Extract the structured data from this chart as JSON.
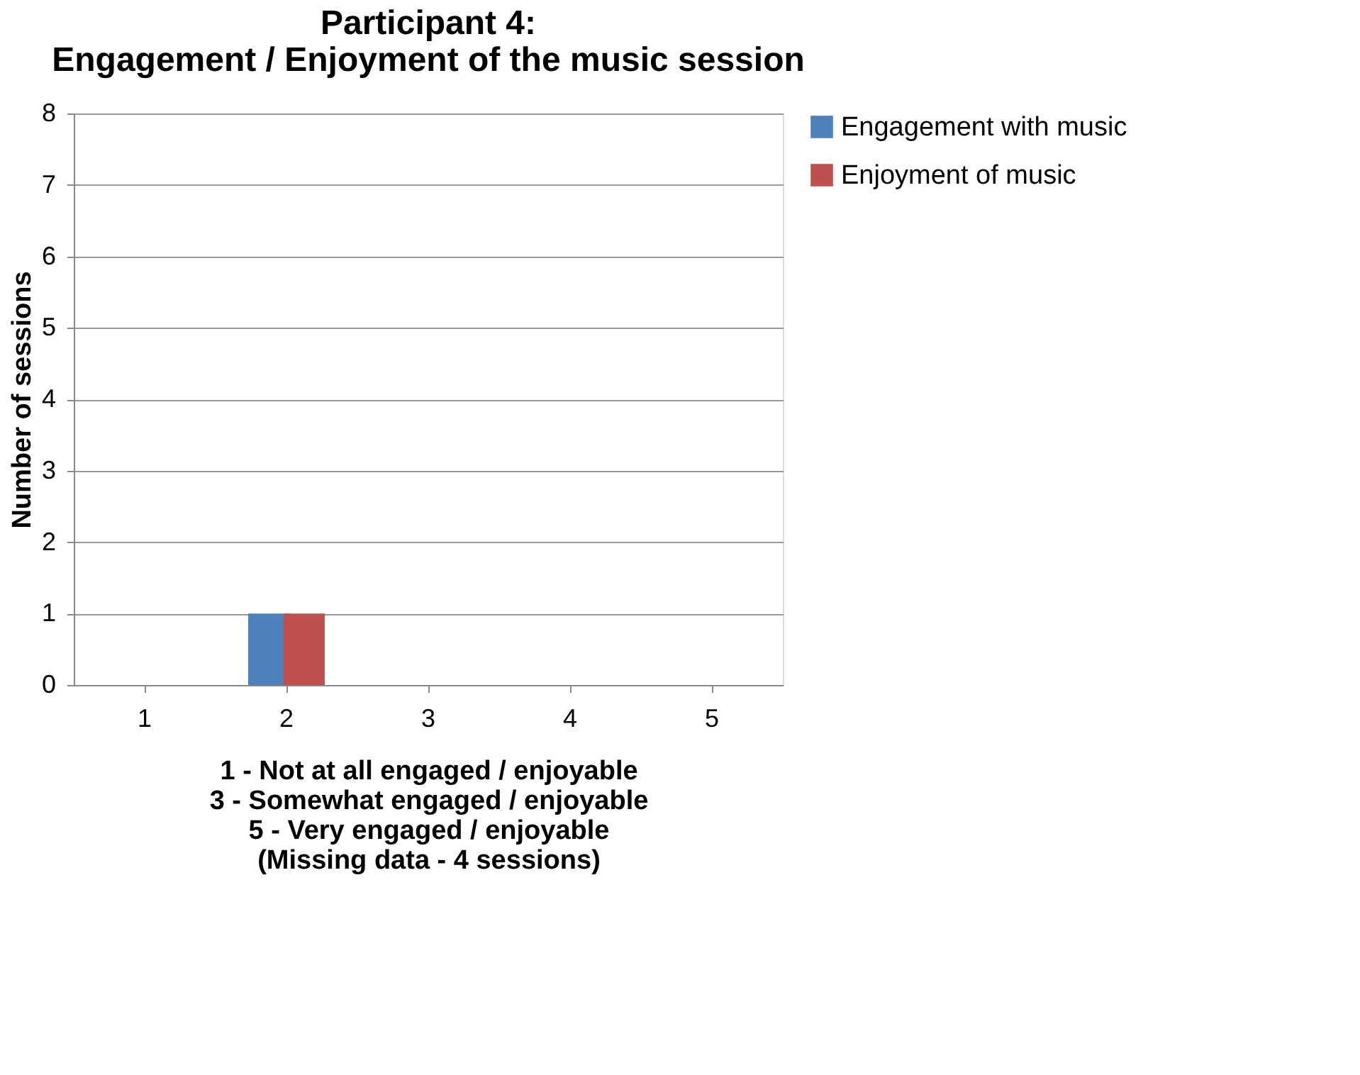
{
  "chart_data": {
    "type": "bar",
    "title": "Participant 4:\nEngagement / Enjoyment of the music session",
    "xlabel": "1 - Not at all engaged / enjoyable\n3 - Somewhat engaged / enjoyable\n5 - Very engaged / enjoyable\n(Missing data - 4 sessions)",
    "ylabel": "Number of sessions",
    "categories": [
      "1",
      "2",
      "3",
      "4",
      "5"
    ],
    "series": [
      {
        "name": "Engagement with music",
        "color": "#4f81bd",
        "values": [
          0,
          1,
          0,
          0,
          0
        ]
      },
      {
        "name": "Enjoyment of music",
        "color": "#c0504d",
        "values": [
          0,
          1,
          0,
          0,
          0
        ]
      }
    ],
    "ylim": [
      0,
      8
    ],
    "yticks": [
      0,
      1,
      2,
      3,
      4,
      5,
      6,
      7,
      8
    ],
    "grid": "y",
    "legend": "right"
  }
}
